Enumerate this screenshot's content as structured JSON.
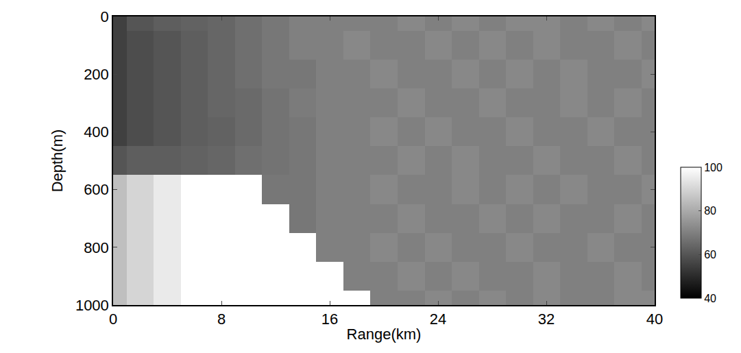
{
  "chart_data": {
    "type": "heatmap",
    "xlabel": "Range(km)",
    "ylabel": "Depth(m)",
    "x": [
      0,
      2,
      4,
      6,
      8,
      10,
      12,
      14,
      16,
      18,
      20,
      22,
      24,
      26,
      28,
      30,
      32,
      34,
      36,
      38,
      40
    ],
    "y": [
      0,
      100,
      200,
      300,
      400,
      500,
      600,
      700,
      800,
      900,
      1000
    ],
    "z": [
      [
        55,
        60,
        62,
        63,
        64,
        66,
        68,
        70,
        70,
        70,
        70,
        72,
        70,
        72,
        70,
        72,
        72,
        70,
        72,
        70,
        72
      ],
      [
        55,
        58,
        60,
        62,
        64,
        66,
        68,
        70,
        70,
        72,
        70,
        70,
        72,
        70,
        72,
        70,
        72,
        70,
        70,
        72,
        70
      ],
      [
        55,
        58,
        60,
        62,
        64,
        66,
        68,
        68,
        70,
        70,
        72,
        70,
        70,
        72,
        70,
        72,
        70,
        72,
        70,
        70,
        72
      ],
      [
        55,
        58,
        60,
        62,
        64,
        65,
        67,
        69,
        70,
        70,
        70,
        72,
        70,
        70,
        72,
        70,
        70,
        72,
        70,
        72,
        70
      ],
      [
        55,
        58,
        60,
        62,
        63,
        65,
        67,
        68,
        70,
        70,
        72,
        70,
        72,
        70,
        70,
        72,
        70,
        70,
        72,
        70,
        70
      ],
      [
        60,
        62,
        62,
        63,
        64,
        66,
        67,
        68,
        70,
        70,
        70,
        72,
        70,
        72,
        70,
        70,
        72,
        70,
        70,
        72,
        70
      ],
      [
        85,
        90,
        95,
        100,
        100,
        100,
        68,
        68,
        70,
        70,
        72,
        70,
        70,
        72,
        70,
        72,
        70,
        72,
        70,
        70,
        72
      ],
      [
        85,
        90,
        95,
        100,
        100,
        100,
        100,
        68,
        70,
        70,
        70,
        72,
        70,
        70,
        72,
        70,
        72,
        70,
        70,
        72,
        70
      ],
      [
        85,
        90,
        95,
        100,
        100,
        100,
        100,
        100,
        70,
        70,
        72,
        70,
        72,
        70,
        70,
        72,
        70,
        70,
        72,
        70,
        70
      ],
      [
        85,
        90,
        95,
        100,
        100,
        100,
        100,
        100,
        100,
        70,
        70,
        72,
        70,
        72,
        70,
        70,
        72,
        70,
        70,
        72,
        70
      ],
      [
        85,
        90,
        95,
        100,
        100,
        100,
        100,
        100,
        100,
        100,
        70,
        70,
        72,
        70,
        72,
        70,
        72,
        70,
        70,
        72,
        72
      ]
    ],
    "xlim": [
      0,
      40
    ],
    "ylim": [
      1000,
      0
    ],
    "xticks": [
      0,
      8,
      16,
      24,
      32,
      40
    ],
    "yticks": [
      0,
      200,
      400,
      600,
      800,
      1000
    ],
    "colorbar": {
      "range": [
        40,
        100
      ],
      "ticks": [
        40,
        60,
        80,
        100
      ]
    },
    "color": "gray"
  }
}
